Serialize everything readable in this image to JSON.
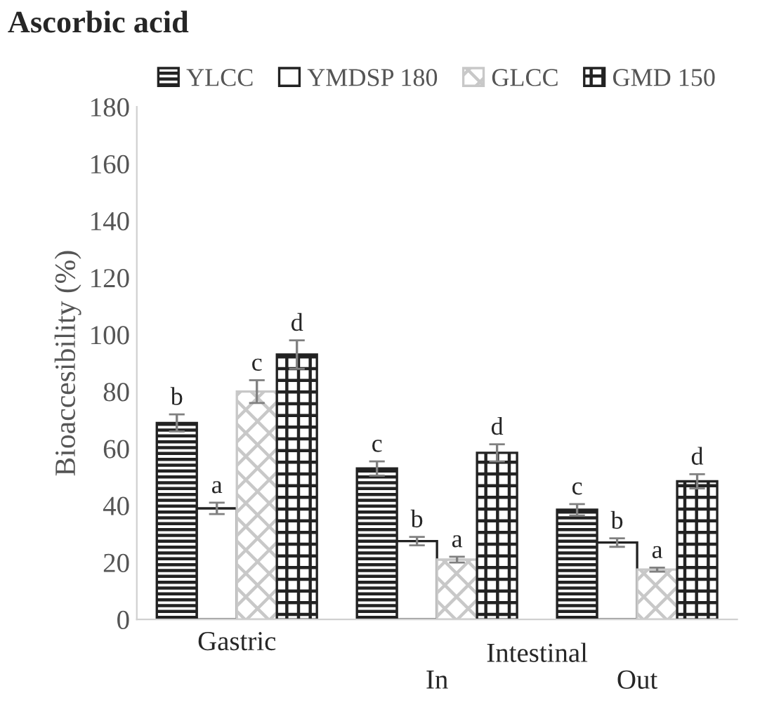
{
  "chart_data": {
    "type": "bar",
    "title": "Ascorbic acid",
    "ylabel": "Bioaccesibility (%)",
    "categories": [
      "Gastric",
      "In",
      "Out"
    ],
    "annotations": [
      "Intestinal"
    ],
    "series": [
      {
        "name": "YLCC",
        "color": "#222222",
        "values": [
          69,
          53,
          38.5
        ],
        "errors": [
          3,
          2.5,
          2
        ],
        "value_labels": [
          "b",
          "c",
          "c"
        ]
      },
      {
        "name": "YMDSP 180",
        "color": "#ffffff",
        "values": [
          39,
          27.5,
          27
        ],
        "errors": [
          2,
          1.5,
          1.5
        ],
        "value_labels": [
          "a",
          "b",
          "b"
        ]
      },
      {
        "name": "GLCC",
        "color": "#c8c8c8",
        "values": [
          80,
          21,
          17.5
        ],
        "errors": [
          4,
          1,
          0.7
        ],
        "value_labels": [
          "c",
          "a",
          "a"
        ]
      },
      {
        "name": "GMD 150",
        "color": "#222222",
        "values": [
          93,
          58.5,
          48.5
        ],
        "errors": [
          5,
          3,
          2.5
        ],
        "value_labels": [
          "d",
          "d",
          "d"
        ]
      }
    ],
    "ylim": [
      0,
      180
    ],
    "yticks": [
      0,
      20,
      40,
      60,
      80,
      100,
      120,
      140,
      160,
      180
    ],
    "grid": false,
    "legend": "top"
  }
}
